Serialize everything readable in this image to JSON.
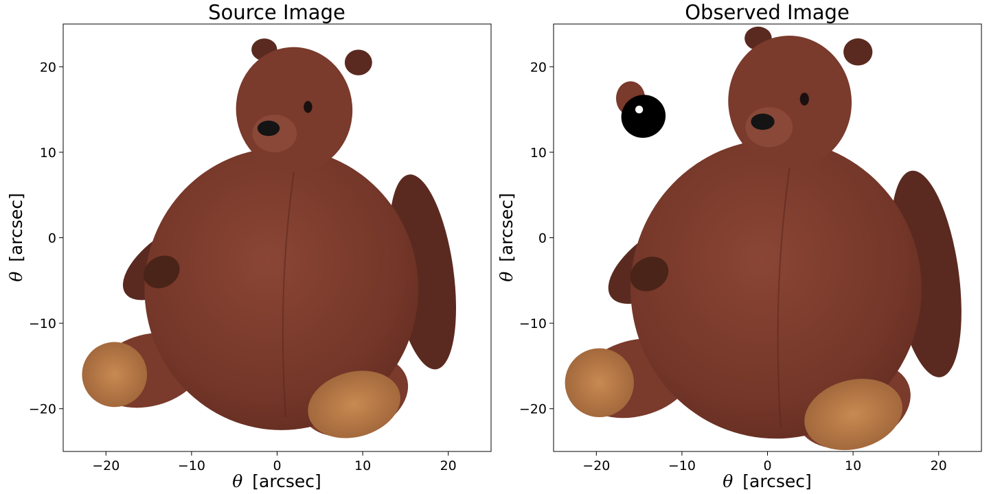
{
  "chart_data": [
    {
      "type": "image",
      "title": "Source Image",
      "xlabel_symbol": "θ",
      "xlabel_unit": "[arcsec]",
      "ylabel_symbol": "θ",
      "ylabel_unit": "[arcsec]",
      "xlim": [
        -25,
        25
      ],
      "ylim": [
        -25,
        25
      ],
      "xticks": [
        -20,
        -10,
        0,
        10,
        20
      ],
      "yticks": [
        -20,
        -10,
        0,
        10,
        20
      ],
      "xtick_labels": [
        "−20",
        "−10",
        "0",
        "10",
        "20"
      ],
      "ytick_labels": [
        "−20",
        "−10",
        "0",
        "10",
        "20"
      ],
      "grid": false,
      "image_subject": "brown-teddy-bear",
      "colors": {
        "fur": "#7a3a2c",
        "fur_dark": "#5a2a20",
        "paw": "#b77a45",
        "nose": "#141414"
      },
      "features": {
        "body": {
          "center": [
            0.5,
            -6
          ],
          "rx": 16,
          "ry": 16.5
        },
        "head": {
          "center": [
            1.5,
            15
          ],
          "rx": 7,
          "ry": 7.2
        }
      }
    },
    {
      "type": "image",
      "title": "Observed Image",
      "xlabel_symbol": "θ",
      "xlabel_unit": "[arcsec]",
      "ylabel_symbol": "θ",
      "ylabel_unit": "[arcsec]",
      "xlim": [
        -25,
        25
      ],
      "ylim": [
        -25,
        25
      ],
      "xticks": [
        -20,
        -10,
        0,
        10,
        20
      ],
      "yticks": [
        -20,
        -10,
        0,
        10,
        20
      ],
      "xtick_labels": [
        "−20",
        "−10",
        "0",
        "10",
        "20"
      ],
      "ytick_labels": [
        "−20",
        "−10",
        "0",
        "10",
        "20"
      ],
      "grid": false,
      "image_subject": "lensed-teddy-bear",
      "colors": {
        "fur": "#7a3a2c",
        "fur_dark": "#5a2a20",
        "paw": "#b77a45",
        "nose": "#141414",
        "mask": "#000000",
        "dot": "#ffffff"
      },
      "features": {
        "body": {
          "center": [
            1,
            -6
          ],
          "rx": 17,
          "ry": 17.5
        },
        "head": {
          "center": [
            2,
            15
          ],
          "rx": 7.5,
          "ry": 7.6
        },
        "mask_blob": {
          "center": [
            -14.5,
            14.2
          ],
          "rx": 2.6,
          "ry": 2.5
        },
        "mask_dot": {
          "center": [
            -15,
            15
          ],
          "r": 0.45
        },
        "fur_fragment": {
          "center": [
            -16,
            16.3
          ],
          "rx": 1.7,
          "ry": 2.0
        }
      }
    }
  ]
}
